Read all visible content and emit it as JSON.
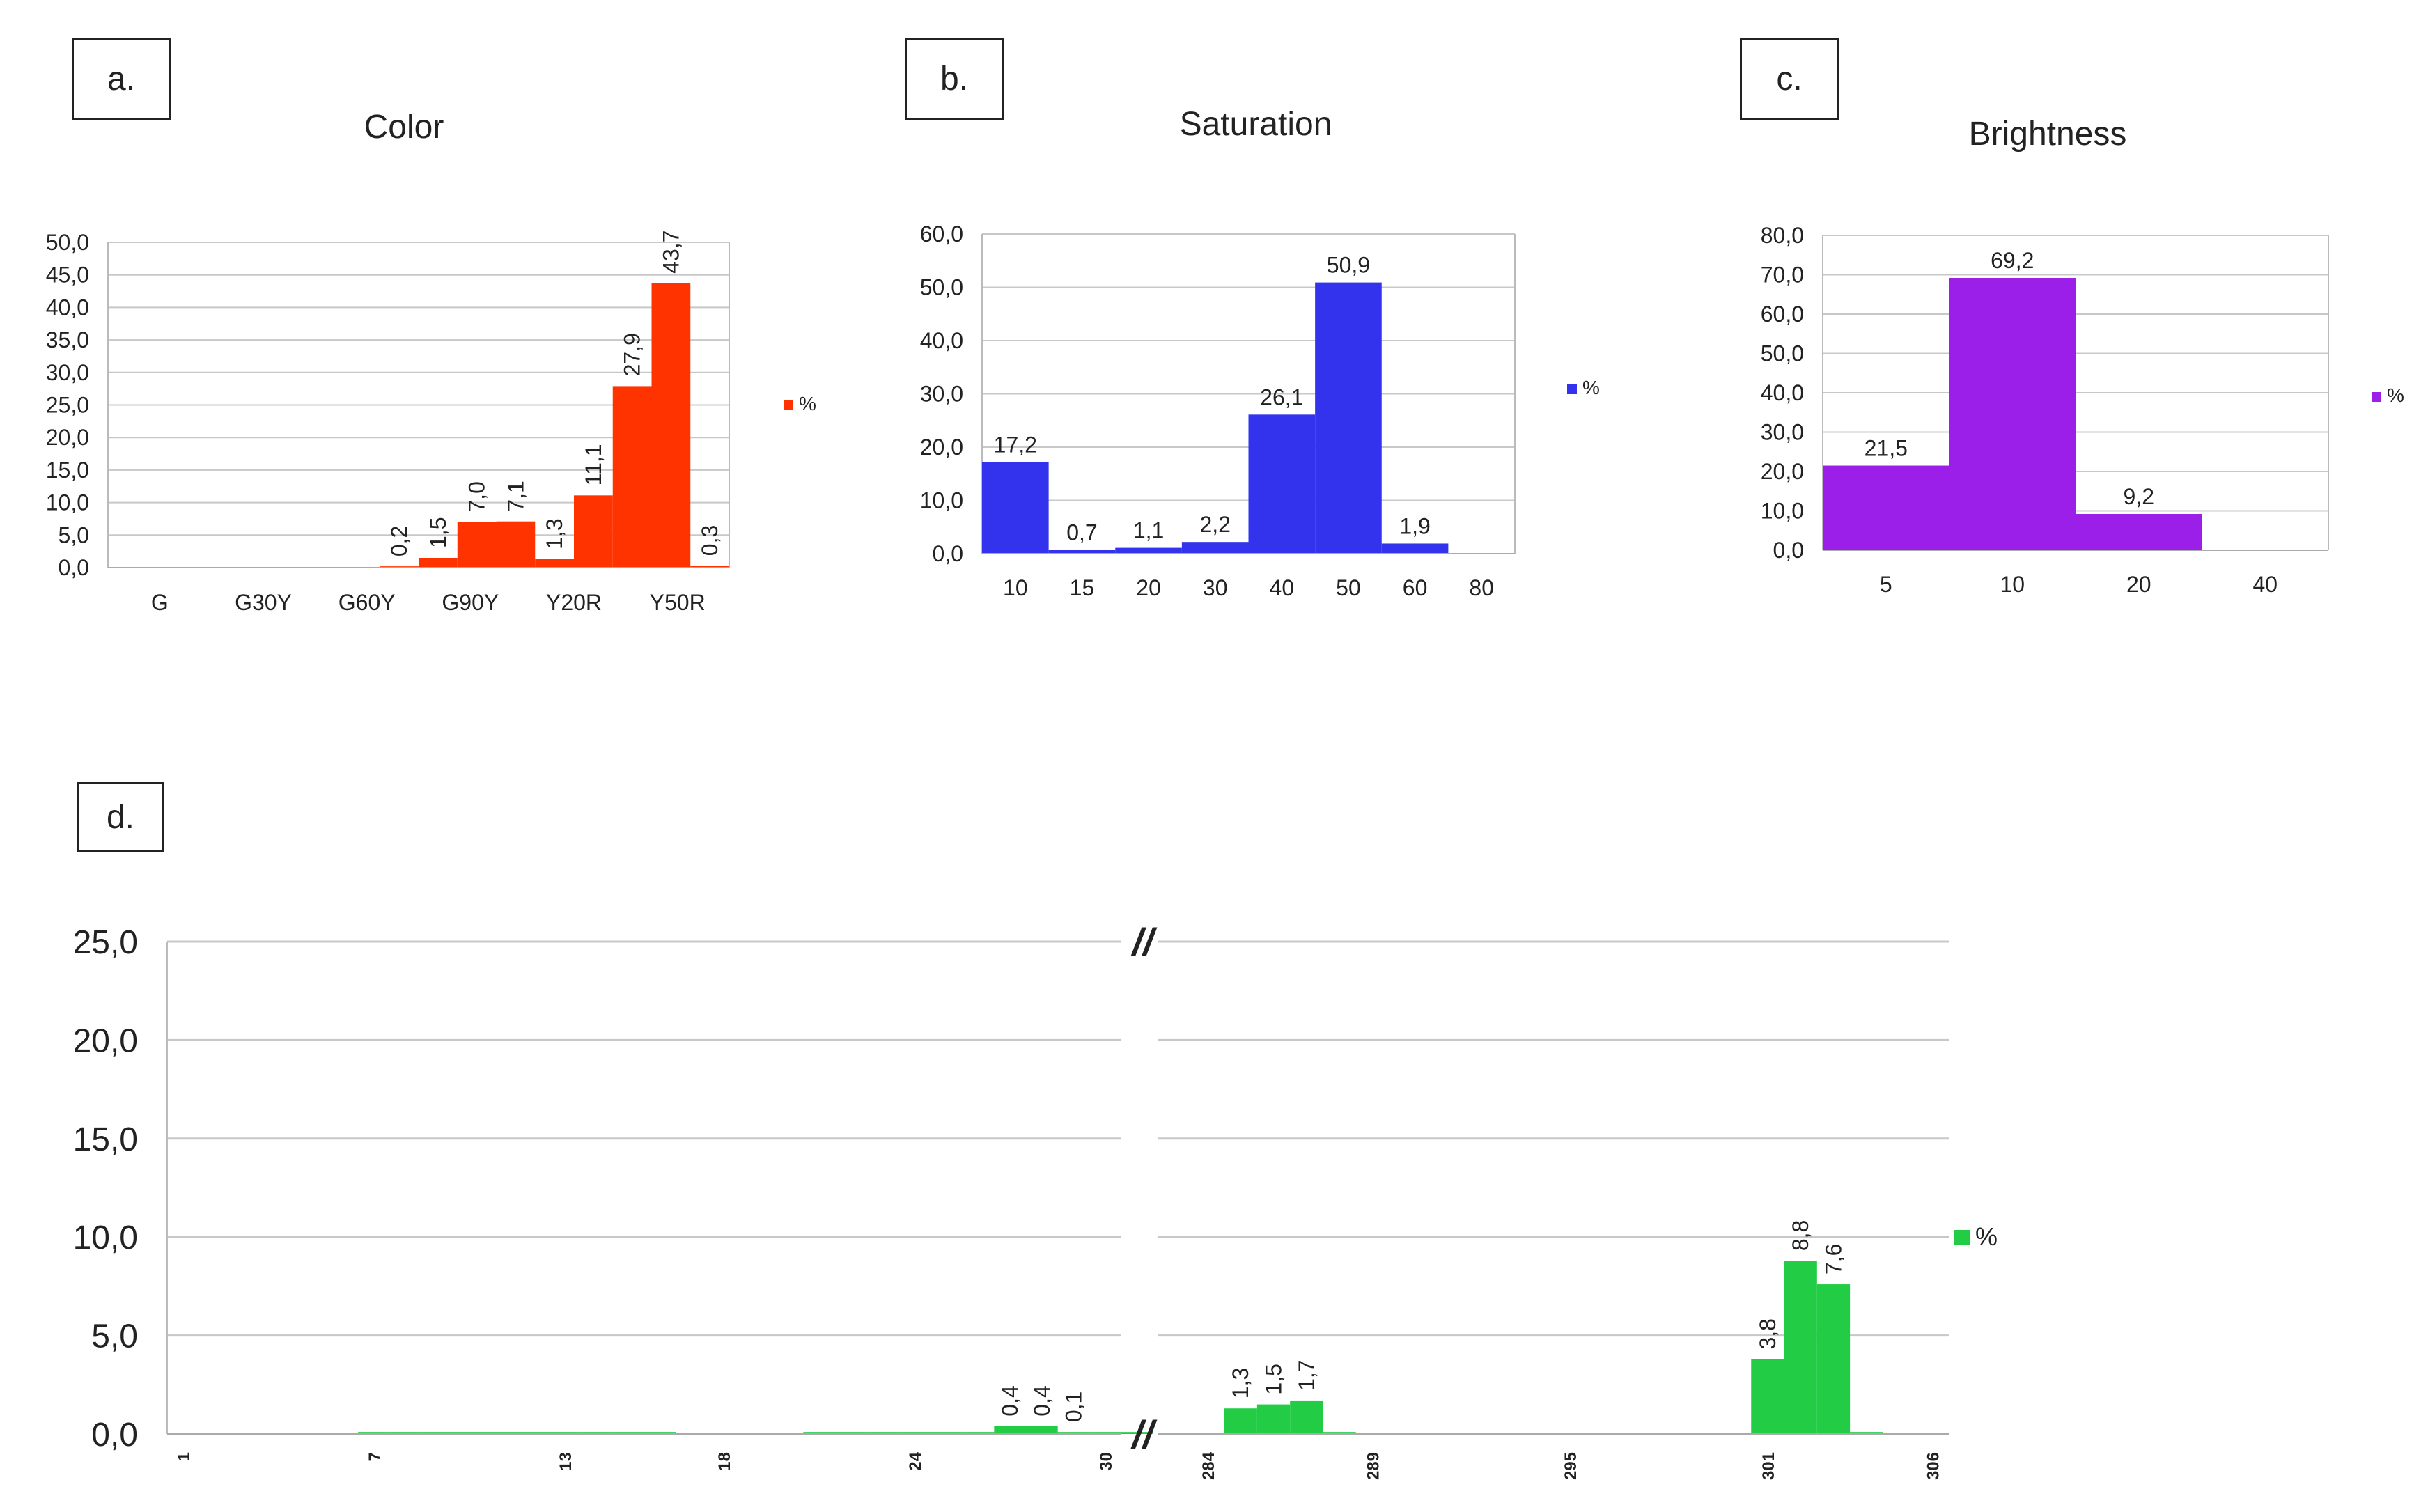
{
  "panels": {
    "a": "a.",
    "b": "b.",
    "c": "c.",
    "d": "d."
  },
  "chart_data": [
    {
      "id": "a",
      "type": "bar",
      "title": "Color",
      "color": "#ff3300",
      "legend": "%",
      "ylim": [
        0,
        50
      ],
      "yticks": [
        "0,0",
        "5,0",
        "10,0",
        "15,0",
        "20,0",
        "25,0",
        "30,0",
        "35,0",
        "40,0",
        "45,0",
        "50,0"
      ],
      "xticklabels": [
        "G",
        "G30Y",
        "G60Y",
        "G90Y",
        "Y20R",
        "Y50R"
      ],
      "bins": 16,
      "values": [
        0,
        0,
        0,
        0,
        0,
        0,
        0,
        0.2,
        1.5,
        7.0,
        7.1,
        1.3,
        11.1,
        27.9,
        43.7,
        0.3
      ],
      "labels": [
        "",
        "",
        "",
        "",
        "",
        "",
        "",
        "0,2",
        "1,5",
        "7,0",
        "7,1",
        "1,3",
        "11,1",
        "27,9",
        "43,7",
        "0,3"
      ]
    },
    {
      "id": "b",
      "type": "bar",
      "title": "Saturation",
      "color": "#3333ee",
      "legend": "%",
      "ylim": [
        0,
        60
      ],
      "yticks": [
        "0,0",
        "10,0",
        "20,0",
        "30,0",
        "40,0",
        "50,0",
        "60,0"
      ],
      "categories": [
        "10",
        "15",
        "20",
        "30",
        "40",
        "50",
        "60",
        "80"
      ],
      "values": [
        17.2,
        0.7,
        1.1,
        2.2,
        26.1,
        50.9,
        1.9,
        0
      ],
      "labels": [
        "17,2",
        "0,7",
        "1,1",
        "2,2",
        "26,1",
        "50,9",
        "1,9",
        ""
      ]
    },
    {
      "id": "c",
      "type": "bar",
      "title": "Brightness",
      "color": "#9b1fe8",
      "legend": "%",
      "ylim": [
        0,
        80
      ],
      "yticks": [
        "0,0",
        "10,0",
        "20,0",
        "30,0",
        "40,0",
        "50,0",
        "60,0",
        "70,0",
        "80,0"
      ],
      "categories": [
        "5",
        "10",
        "20",
        "40"
      ],
      "values": [
        21.5,
        69.2,
        9.2,
        0
      ],
      "labels": [
        "21,5",
        "69,2",
        "9,2",
        ""
      ]
    },
    {
      "id": "d",
      "type": "bar",
      "title": "",
      "color": "#22cc44",
      "legend": "%",
      "ylim": [
        0,
        25
      ],
      "yticks": [
        "0,0",
        "5,0",
        "10,0",
        "15,0",
        "20,0",
        "25,0"
      ],
      "break_mark": "//",
      "segments": [
        {
          "start": 1,
          "end": 31,
          "xticks": [
            "1",
            "7",
            "13",
            "18",
            "24",
            "30"
          ],
          "values": [
            0,
            0,
            0,
            0,
            0,
            0,
            0.1,
            0.1,
            0.1,
            0.1,
            0.1,
            0.1,
            0.1,
            0.1,
            0.1,
            0.1,
            0,
            0,
            0,
            0,
            0.1,
            0.1,
            0.1,
            0.1,
            0.1,
            0.1,
            0.4,
            0.4,
            0.1,
            0.1,
            0.1
          ],
          "labels": [
            "",
            "",
            "",
            "",
            "",
            "",
            "",
            "",
            "",
            "",
            "",
            "",
            "",
            "",
            "",
            "",
            "",
            "",
            "",
            "",
            "",
            "",
            "",
            "",
            "",
            "",
            "0,4",
            "0,4",
            "0,1",
            "",
            ""
          ]
        },
        {
          "start": 283,
          "end": 307,
          "xticks": [
            "284",
            "289",
            "295",
            "301",
            "306"
          ],
          "values": [
            0,
            0,
            1.3,
            1.5,
            1.7,
            0.1,
            0,
            0,
            0,
            0,
            0,
            0,
            0,
            0,
            0,
            0,
            0,
            0,
            3.8,
            8.8,
            7.6,
            0.1,
            0,
            0,
            0
          ],
          "labels": [
            "",
            "",
            "1,3",
            "1,5",
            "1,7",
            "",
            "",
            "",
            "",
            "",
            "",
            "",
            "",
            "",
            "",
            "",
            "",
            "",
            "3,8",
            "8,8",
            "7,6",
            "",
            "",
            "",
            ""
          ]
        }
      ]
    }
  ]
}
